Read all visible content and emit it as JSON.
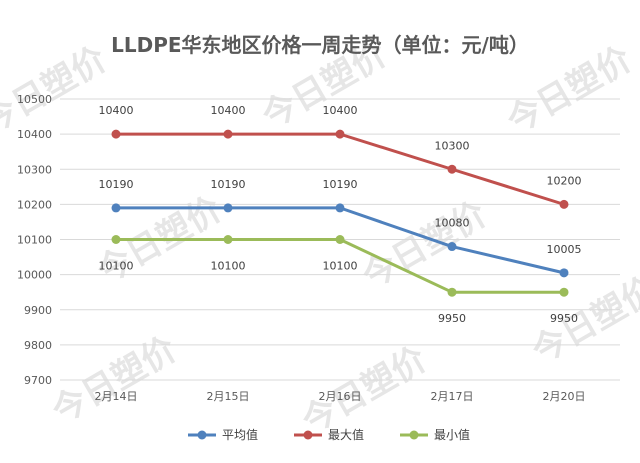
{
  "chart_data": {
    "type": "line",
    "title": "LLDPE华东地区价格一周走势（单位：元/吨）",
    "categories": [
      "2月14日",
      "2月15日",
      "2月16日",
      "2月17日",
      "2月20日"
    ],
    "series": [
      {
        "name": "平均值",
        "color": "#4f81bd",
        "values": [
          10190,
          10190,
          10190,
          10080,
          10005
        ]
      },
      {
        "name": "最大值",
        "color": "#c0504d",
        "values": [
          10400,
          10400,
          10400,
          10300,
          10200
        ]
      },
      {
        "name": "最小值",
        "color": "#9bbb59",
        "values": [
          10100,
          10100,
          10100,
          9950,
          9950
        ]
      }
    ],
    "ylim": [
      9700,
      10500
    ],
    "yticks": [
      9700,
      9800,
      9900,
      10000,
      10100,
      10200,
      10300,
      10400,
      10500
    ],
    "grid": true,
    "legend_position": "bottom"
  },
  "watermark": "今日塑价"
}
